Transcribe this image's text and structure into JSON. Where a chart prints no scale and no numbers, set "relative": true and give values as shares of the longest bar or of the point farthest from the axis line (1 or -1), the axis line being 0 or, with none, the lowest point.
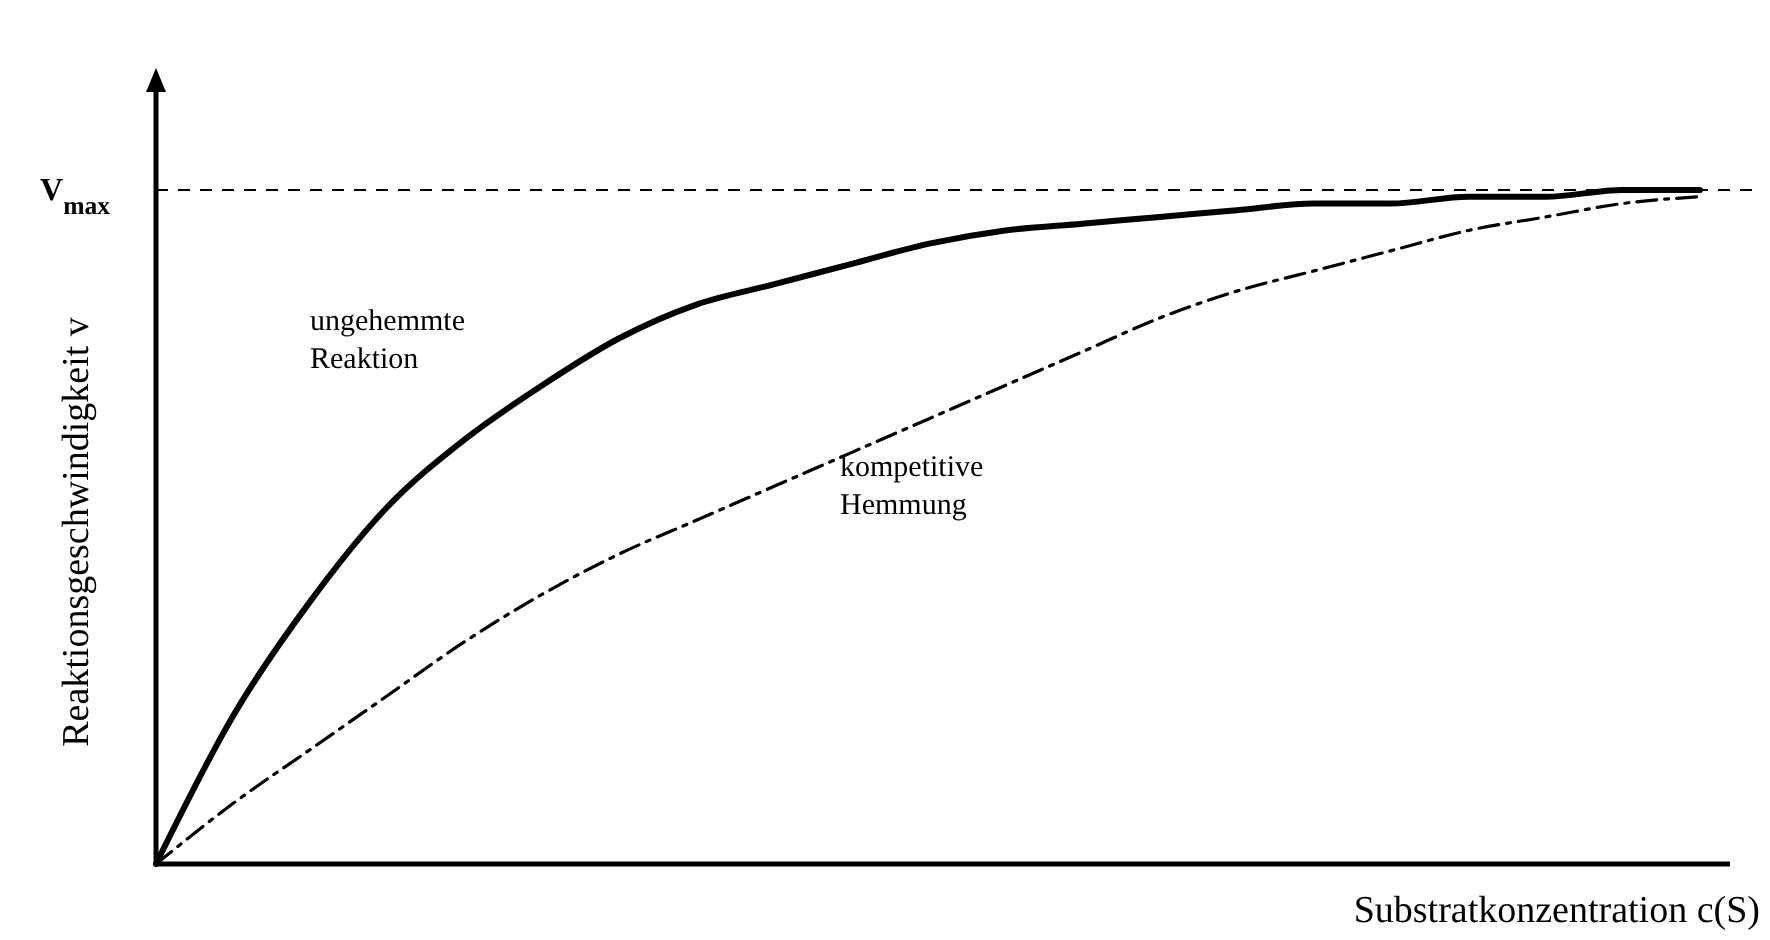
{
  "chart_data": {
    "type": "line",
    "relative": true,
    "xlabel": "Substratkonzentration c(S)",
    "ylabel": "Reaktionsgeschwindigkeit v",
    "categories": [
      null,
      null,
      null,
      null,
      null,
      null,
      null,
      null,
      null,
      null,
      null,
      null,
      null,
      null,
      null,
      null,
      null,
      null,
      null,
      null,
      null
    ],
    "series": [
      {
        "name": "ungehemmte Reaktion",
        "color": "#000000",
        "line_style": "solid",
        "values": [
          0,
          0.22,
          0.39,
          0.53,
          0.63,
          0.71,
          0.78,
          0.83,
          0.86,
          0.89,
          0.92,
          0.94,
          0.95,
          0.96,
          0.97,
          0.98,
          0.98,
          0.99,
          0.99,
          1,
          1
        ]
      },
      {
        "name": "kompetitive Hemmung",
        "color": "#000000",
        "line_style": "dashdot",
        "values": [
          0,
          0.09,
          0.17,
          0.25,
          0.33,
          0.4,
          0.46,
          0.51,
          0.56,
          0.61,
          0.66,
          0.71,
          0.76,
          0.81,
          0.85,
          0.88,
          0.91,
          0.94,
          0.96,
          0.98,
          0.99
        ]
      }
    ],
    "ref_lines": [
      {
        "axis": "y",
        "value": 1,
        "label": "V$_{max}$",
        "line_style": "dashed",
        "color": "#000000"
      }
    ],
    "legend": false
  }
}
